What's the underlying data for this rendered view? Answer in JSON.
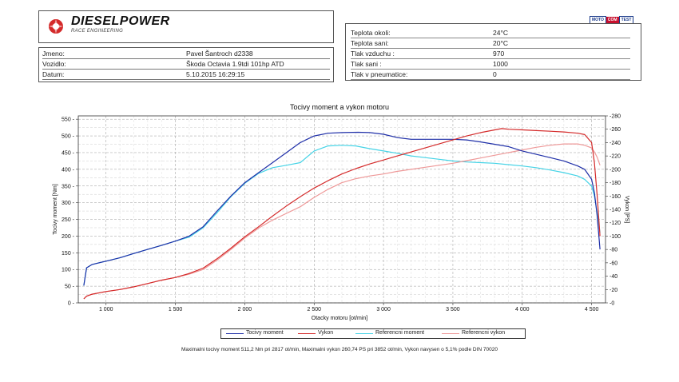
{
  "header": {
    "brand": "DIESELPOWER",
    "brand_sub": "RACE ENGINEERING",
    "badge": [
      "MOTO",
      "COM",
      "TEST"
    ]
  },
  "info": [
    {
      "label": "Jmeno:",
      "value": "Pavel Šantroch d2338"
    },
    {
      "label": "Vozidlo:",
      "value": "Škoda Octavia 1.9tdi 101hp ATD"
    },
    {
      "label": "Datum:",
      "value": "5.10.2015 16:29:15"
    }
  ],
  "conditions": [
    {
      "label": "Teplota okoli:",
      "value": "24°C"
    },
    {
      "label": "Teplota sani:",
      "value": "20°C"
    },
    {
      "label": "Tlak vzduchu :",
      "value": "970"
    },
    {
      "label": "Tlak sani :",
      "value": "1000"
    },
    {
      "label": "Tlak v pneumatice:",
      "value": "0"
    }
  ],
  "colors": {
    "torque": "#1f2fa8",
    "power": "#d42a2a",
    "ref_torque": "#45d3e6",
    "ref_power": "#ee9898"
  },
  "chart_data": {
    "type": "line",
    "title": "Tocivy moment a vykon motoru",
    "xlabel": "Otacky motoru [ot/min]",
    "ylabel": "Tocivy moment [Nm]",
    "y2label": "Vykon [PS]",
    "xlim": [
      800,
      4600
    ],
    "ylim": [
      0,
      560
    ],
    "y2lim": [
      0,
      280
    ],
    "xticks": [
      1000,
      1500,
      2000,
      2500,
      3000,
      3500,
      4000,
      4500
    ],
    "xtick_labels": [
      "1 000",
      "1 500",
      "2 000",
      "2 500",
      "3 000",
      "3 500",
      "4 000",
      "4 500"
    ],
    "yticks": [
      0,
      50,
      100,
      150,
      200,
      250,
      300,
      350,
      400,
      450,
      500,
      550
    ],
    "y2ticks": [
      0,
      20,
      40,
      60,
      80,
      100,
      120,
      140,
      160,
      180,
      200,
      220,
      240,
      260,
      280
    ],
    "grid": true,
    "legend_position": "bottom",
    "series": [
      {
        "name": "Tocivy moment",
        "axis": "left",
        "x": [
          840,
          860,
          900,
          1000,
          1100,
          1200,
          1300,
          1400,
          1500,
          1600,
          1700,
          1800,
          1900,
          2000,
          2100,
          2200,
          2300,
          2400,
          2500,
          2600,
          2700,
          2817,
          2900,
          3000,
          3100,
          3200,
          3300,
          3400,
          3500,
          3600,
          3700,
          3800,
          3900,
          4000,
          4100,
          4200,
          4300,
          4400,
          4450,
          4500,
          4520,
          4540,
          4560
        ],
        "y": [
          52,
          105,
          115,
          125,
          135,
          148,
          160,
          172,
          185,
          200,
          228,
          275,
          320,
          360,
          390,
          420,
          450,
          480,
          500,
          508,
          510,
          511,
          510,
          505,
          495,
          490,
          490,
          490,
          490,
          488,
          482,
          475,
          468,
          455,
          445,
          435,
          425,
          410,
          400,
          370,
          330,
          260,
          160
        ]
      },
      {
        "name": "Vykon",
        "axis": "right",
        "x": [
          840,
          860,
          900,
          1000,
          1100,
          1200,
          1300,
          1400,
          1500,
          1600,
          1700,
          1800,
          1900,
          2000,
          2100,
          2200,
          2300,
          2400,
          2500,
          2600,
          2700,
          2800,
          2900,
          3000,
          3100,
          3200,
          3300,
          3400,
          3500,
          3600,
          3700,
          3852,
          3900,
          4000,
          4100,
          4200,
          4300,
          4400,
          4450,
          4500,
          4520,
          4540,
          4560
        ],
        "y": [
          6,
          10,
          13,
          17,
          20,
          24,
          29,
          34,
          38,
          44,
          52,
          66,
          82,
          99,
          114,
          130,
          145,
          159,
          172,
          183,
          193,
          201,
          208,
          214,
          220,
          226,
          232,
          238,
          244,
          250,
          255,
          261,
          260,
          259,
          258,
          257,
          256,
          254,
          252,
          240,
          210,
          160,
          100
        ]
      },
      {
        "name": "Referencni moment",
        "axis": "left",
        "x": [
          840,
          860,
          900,
          1000,
          1100,
          1200,
          1300,
          1400,
          1500,
          1600,
          1700,
          1800,
          1900,
          2000,
          2100,
          2200,
          2300,
          2400,
          2500,
          2600,
          2700,
          2800,
          2900,
          3000,
          3100,
          3200,
          3300,
          3400,
          3500,
          3600,
          3700,
          3800,
          3900,
          4000,
          4100,
          4200,
          4300,
          4400,
          4450,
          4500,
          4520,
          4540,
          4560
        ],
        "y": [
          52,
          105,
          115,
          125,
          135,
          148,
          160,
          172,
          185,
          197,
          225,
          270,
          318,
          358,
          388,
          405,
          412,
          420,
          455,
          470,
          472,
          470,
          462,
          455,
          448,
          440,
          435,
          430,
          425,
          422,
          420,
          418,
          414,
          410,
          405,
          398,
          390,
          380,
          370,
          350,
          320,
          270,
          210
        ]
      },
      {
        "name": "Referencni vykon",
        "axis": "right",
        "x": [
          840,
          860,
          900,
          1000,
          1100,
          1200,
          1300,
          1400,
          1500,
          1600,
          1700,
          1800,
          1900,
          2000,
          2100,
          2200,
          2300,
          2400,
          2500,
          2600,
          2700,
          2800,
          2900,
          3000,
          3100,
          3200,
          3300,
          3400,
          3500,
          3600,
          3700,
          3800,
          3900,
          4000,
          4100,
          4200,
          4300,
          4400,
          4450,
          4500,
          4520,
          4540,
          4560
        ],
        "y": [
          6,
          10,
          13,
          17,
          20,
          24,
          29,
          34,
          38,
          43,
          50,
          64,
          80,
          97,
          112,
          124,
          134,
          144,
          158,
          170,
          180,
          186,
          190,
          193,
          197,
          200,
          203,
          206,
          209,
          213,
          217,
          221,
          225,
          229,
          233,
          236,
          238,
          238,
          236,
          232,
          226,
          218,
          206
        ]
      }
    ]
  },
  "footer": "Maximalni tocivy moment 511,2 Nm pri 2817 ot/min,  Maximalni vykon 260,74 PS pri 3852 ot/min,  Vykon navysen o 5,1% podle DIN 70020"
}
